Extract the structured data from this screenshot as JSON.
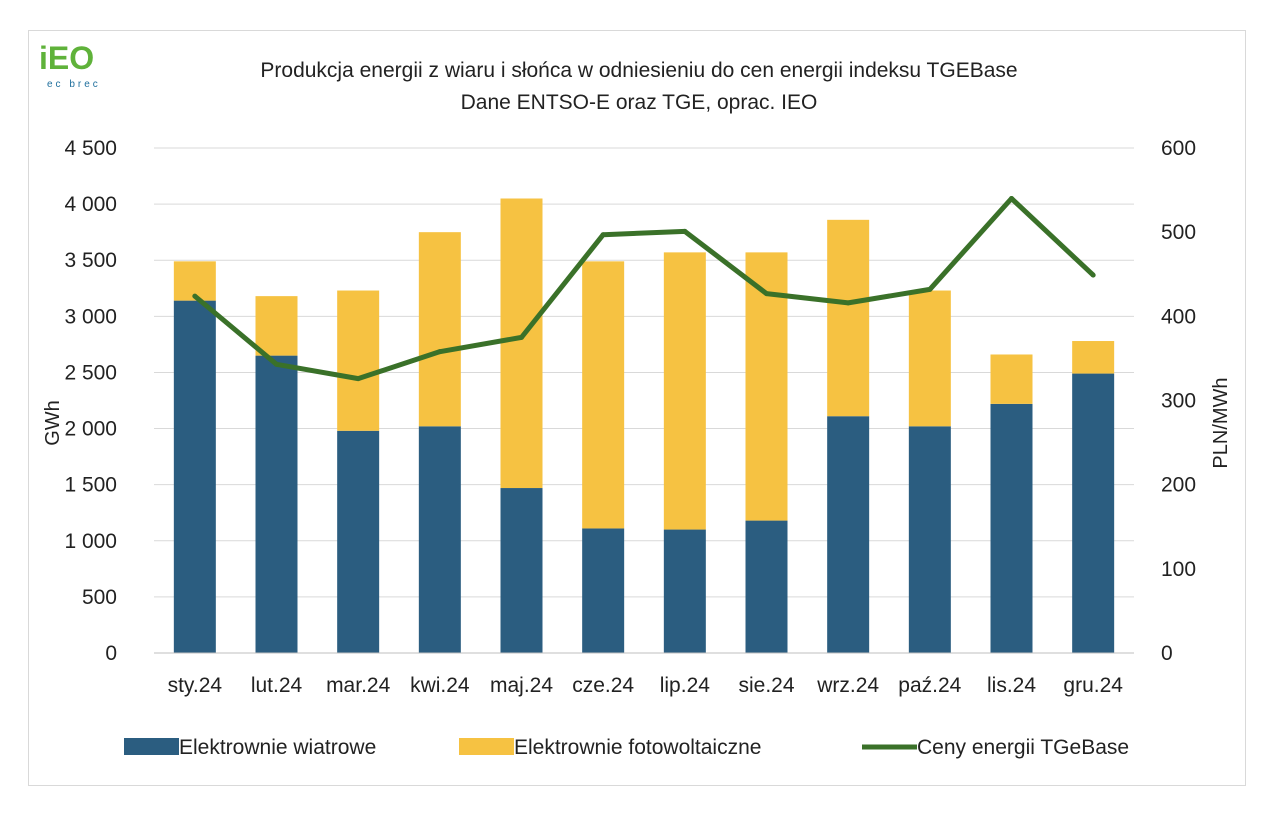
{
  "logo": {
    "text": "iEO",
    "subtext": "ec brec"
  },
  "colors": {
    "wind": "#2b5d80",
    "solar": "#f6c242",
    "price": "#3a7129",
    "grid": "#d9d9d9",
    "logo_green": "#5fb23a",
    "logo_blue": "#1f6f9d"
  },
  "chart_data": {
    "type": "bar",
    "stacked": true,
    "title": "Produkcja energii z wiaru i słońca w odniesieniu do cen energii indeksu TGEBase",
    "subtitle": "Dane ENTSO-E oraz TGE, oprac. IEO",
    "ylabel": "GWh",
    "y2label": "PLN/MWh",
    "ylim": [
      0,
      4500
    ],
    "y2lim": [
      0,
      600
    ],
    "yticks": [
      "0",
      "500",
      "1 000",
      "1 500",
      "2 000",
      "2 500",
      "3 000",
      "3 500",
      "4 000",
      "4 500"
    ],
    "y2ticks": [
      "0",
      "100",
      "200",
      "300",
      "400",
      "500",
      "600"
    ],
    "grid": true,
    "legend_position": "bottom",
    "categories": [
      "sty.24",
      "lut.24",
      "mar.24",
      "kwi.24",
      "maj.24",
      "cze.24",
      "lip.24",
      "sie.24",
      "wrz.24",
      "paź.24",
      "lis.24",
      "gru.24"
    ],
    "series": [
      {
        "name": "Elektrownie wiatrowe",
        "type": "bar",
        "axis": "left",
        "values": [
          3140,
          2650,
          1980,
          2020,
          1470,
          1110,
          1100,
          1180,
          2110,
          2020,
          2220,
          2490
        ]
      },
      {
        "name": "Elektrownie fotowoltaiczne",
        "type": "bar",
        "axis": "left",
        "values": [
          350,
          530,
          1250,
          1730,
          2580,
          2380,
          2470,
          2390,
          1750,
          1210,
          440,
          290
        ]
      },
      {
        "name": "Ceny energii TGeBase",
        "type": "line",
        "axis": "right",
        "values": [
          424,
          343,
          326,
          358,
          375,
          497,
          501,
          427,
          416,
          432,
          540,
          449
        ]
      }
    ]
  }
}
